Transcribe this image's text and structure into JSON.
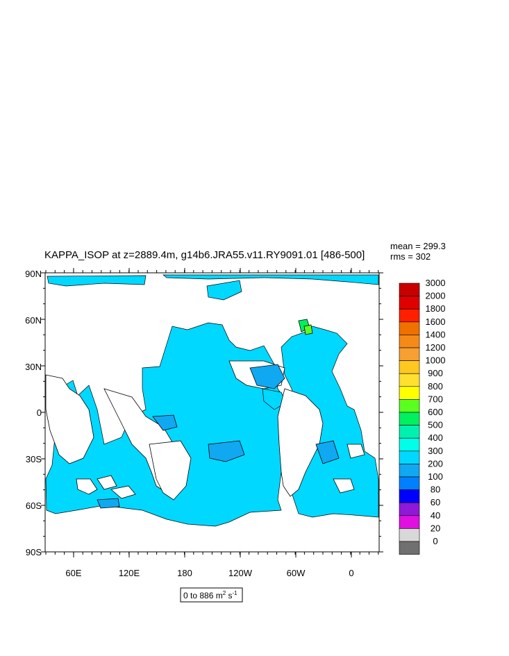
{
  "title": "KAPPA_ISOP at z=2889.4m, g14b6.JRA55.v11.RY9091.01 [486-500]",
  "stats": {
    "mean_text": "mean = 299.3",
    "rms_text": "rms = 302"
  },
  "lat_ticks": [
    "90N",
    "60N",
    "30N",
    "0",
    "30S",
    "60S",
    "90S"
  ],
  "lon_ticks": [
    "60E",
    "120E",
    "180",
    "120W",
    "60W",
    "0"
  ],
  "colorbar": {
    "labels": [
      "3000",
      "2000",
      "1800",
      "1600",
      "1400",
      "1200",
      "1000",
      "900",
      "800",
      "700",
      "600",
      "500",
      "400",
      "300",
      "200",
      "100",
      "80",
      "60",
      "40",
      "20",
      "0"
    ],
    "colors": [
      "#c80000",
      "#e00000",
      "#ff2000",
      "#f07000",
      "#f58a18",
      "#f5a030",
      "#ffc820",
      "#ffe030",
      "#ffff00",
      "#5aff20",
      "#00f060",
      "#00f0b0",
      "#00ffe8",
      "#00d8ff",
      "#10a8f0",
      "#0080ff",
      "#0000ff",
      "#9018d8",
      "#e010e0",
      "#d8d8d8",
      "#707070"
    ]
  },
  "range_note": {
    "prefix": "0 to 886 m",
    "sup1": "2",
    "mid": " s",
    "sup2": "-1"
  },
  "map_colors": {
    "ocean_main": "#00d8ff",
    "ocean_300": "#10a8f0",
    "ocean_200": "#0080ff",
    "high_700": "#00f060",
    "high_600": "#5aff20",
    "land": "#ffffff"
  }
}
